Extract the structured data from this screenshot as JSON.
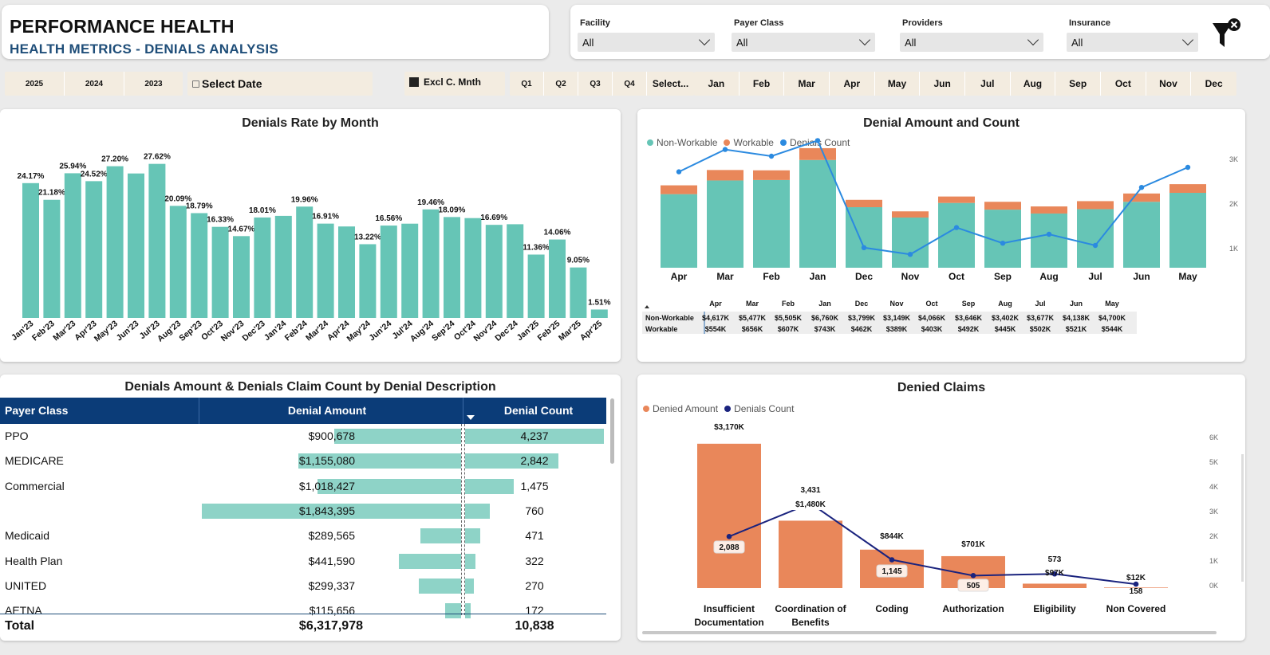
{
  "header": {
    "title": "PERFORMANCE HEALTH",
    "subtitle": "HEALTH METRICS - DENIALS ANALYSIS"
  },
  "filters": [
    {
      "label": "Facility",
      "value": "All"
    },
    {
      "label": "Payer Class",
      "value": "All"
    },
    {
      "label": "Providers",
      "value": "All"
    },
    {
      "label": "Insurance",
      "value": "All"
    }
  ],
  "clear_filters_icon": "funnel-clear-icon",
  "date_bar": {
    "years": [
      "2025",
      "2024",
      "2023"
    ],
    "select_date": "Select Date",
    "excl": "Excl C. Mnth",
    "quarters": [
      "Q1",
      "Q2",
      "Q3",
      "Q4",
      "Select..."
    ],
    "months": [
      "Jan",
      "Feb",
      "Mar",
      "Apr",
      "May",
      "Jun",
      "Jul",
      "Aug",
      "Sep",
      "Oct",
      "Nov",
      "Dec"
    ]
  },
  "rate_chart": {
    "title": "Denials Rate by Month",
    "chart_data": {
      "type": "bar",
      "color": "#66c5b6",
      "categories": [
        "Jan'23",
        "Feb'23",
        "Mar'23",
        "Apr'23",
        "May'23",
        "Jun'23",
        "Jul'23",
        "Aug'23",
        "Sep'23",
        "Oct'23",
        "Nov'23",
        "Dec'23",
        "Jan'24",
        "Feb'24",
        "Mar'24",
        "Apr'24",
        "May'24",
        "Jun'24",
        "Jul'24",
        "Aug'24",
        "Sep'24",
        "Oct'24",
        "Nov'24",
        "Dec'24",
        "Jan'25",
        "Feb'25",
        "Mar'25",
        "Apr'25"
      ],
      "values": [
        24.17,
        21.18,
        25.94,
        24.52,
        27.2,
        25.9,
        27.62,
        20.09,
        18.79,
        16.33,
        14.67,
        18.01,
        18.3,
        19.96,
        16.91,
        16.4,
        13.22,
        16.56,
        16.9,
        19.46,
        18.09,
        17.9,
        16.69,
        16.8,
        11.36,
        14.06,
        9.05,
        1.51
      ],
      "labels": [
        "24.17%",
        "21.18%",
        "25.94%",
        "24.52%",
        "27.20%",
        "",
        "27.62%",
        "20.09%",
        "18.79%",
        "16.33%",
        "14.67%",
        "18.01%",
        "",
        "19.96%",
        "16.91%",
        "",
        "13.22%",
        "16.56%",
        "",
        "19.46%",
        "18.09%",
        "",
        "16.69%",
        "",
        "11.36%",
        "14.06%",
        "9.05%",
        "1.51%"
      ],
      "ylim": [
        0,
        30
      ]
    }
  },
  "amount_chart": {
    "title": "Denial Amount and Count",
    "legend": [
      {
        "name": "Non-Workable",
        "color": "#66c5b6"
      },
      {
        "name": "Workable",
        "color": "#e9875a"
      },
      {
        "name": "Denials Count",
        "color": "#2b8ae0"
      }
    ],
    "chart_data": {
      "type": "bar",
      "stacked": true,
      "categories": [
        "Apr",
        "Mar",
        "Feb",
        "Jan",
        "Dec",
        "Nov",
        "Oct",
        "Sep",
        "Aug",
        "Jul",
        "Jun",
        "May"
      ],
      "series": [
        {
          "name": "Non-Workable",
          "values": [
            4617,
            5477,
            5505,
            6760,
            3799,
            3149,
            4066,
            3646,
            3402,
            3677,
            4138,
            4700
          ]
        },
        {
          "name": "Workable",
          "values": [
            554,
            656,
            607,
            743,
            462,
            389,
            403,
            492,
            445,
            502,
            521,
            544
          ]
        },
        {
          "name": "Denials Count",
          "values": [
            2.7,
            3.2,
            3.05,
            3.4,
            1.0,
            0.85,
            1.45,
            1.1,
            1.3,
            1.05,
            2.35,
            2.8
          ]
        }
      ],
      "y2_ticks": [
        "1K",
        "2K",
        "3K"
      ],
      "ylim": [
        0,
        8000
      ]
    },
    "table": {
      "columns": [
        "Apr",
        "Mar",
        "Feb",
        "Jan",
        "Dec",
        "Nov",
        "Oct",
        "Sep",
        "Aug",
        "Jul",
        "Jun",
        "May"
      ],
      "rows": [
        {
          "name": "Non-Workable",
          "values": [
            "$4,617K",
            "$5,477K",
            "$5,505K",
            "$6,760K",
            "$3,799K",
            "$3,149K",
            "$4,066K",
            "$3,646K",
            "$3,402K",
            "$3,677K",
            "$4,138K",
            "$4,700K"
          ]
        },
        {
          "name": "Workable",
          "values": [
            "$554K",
            "$656K",
            "$607K",
            "$743K",
            "$462K",
            "$389K",
            "$403K",
            "$492K",
            "$445K",
            "$502K",
            "$521K",
            "$544K"
          ]
        }
      ]
    }
  },
  "payer_table": {
    "title": "Denials Amount & Denials Claim Count by Denial Description",
    "headers": {
      "payer": "Payer Class",
      "amount": "Denial Amount",
      "count": "Denial Count"
    },
    "rows": [
      {
        "payer": "PPO",
        "amount": "$900,678",
        "amount_value": 900678,
        "count": "4,237",
        "count_value": 4237
      },
      {
        "payer": "MEDICARE",
        "amount": "$1,155,080",
        "amount_value": 1155080,
        "count": "2,842",
        "count_value": 2842
      },
      {
        "payer": "Commercial",
        "amount": "$1,018,427",
        "amount_value": 1018427,
        "count": "1,475",
        "count_value": 1475
      },
      {
        "payer": "",
        "amount": "$1,843,395",
        "amount_value": 1843395,
        "count": "760",
        "count_value": 760
      },
      {
        "payer": "Medicaid",
        "amount": "$289,565",
        "amount_value": 289565,
        "count": "471",
        "count_value": 471
      },
      {
        "payer": "Health Plan",
        "amount": "$441,590",
        "amount_value": 441590,
        "count": "322",
        "count_value": 322
      },
      {
        "payer": "UNITED",
        "amount": "$299,337",
        "amount_value": 299337,
        "count": "270",
        "count_value": 270
      },
      {
        "payer": "AETNA",
        "amount": "$115,656",
        "amount_value": 115656,
        "count": "172",
        "count_value": 172
      }
    ],
    "total": {
      "label": "Total",
      "amount": "$6,317,978",
      "count": "10,838"
    }
  },
  "denied_chart": {
    "title": "Denied Claims",
    "legend": [
      {
        "name": "Denied Amount",
        "color": "#e9875a"
      },
      {
        "name": "Denials Count",
        "color": "#1a237e"
      }
    ],
    "chart_data": {
      "type": "bar",
      "categories": [
        [
          "Insufficient",
          "Documentation"
        ],
        [
          "Coordination of",
          "Benefits"
        ],
        [
          "Coding"
        ],
        [
          "Authorization"
        ],
        [
          "Eligibility"
        ],
        [
          "Non Covered"
        ]
      ],
      "series": [
        {
          "name": "Denied Amount",
          "values": [
            3170,
            1480,
            844,
            701,
            97,
            12
          ],
          "labels": [
            "$3,170K",
            "$1,480K",
            "$844K",
            "$701K",
            "$97K",
            "$12K"
          ]
        },
        {
          "name": "Denials Count",
          "values": [
            2088,
            3431,
            1145,
            505,
            573,
            158
          ],
          "labels": [
            "2,088",
            "3,431",
            "1,145",
            "505",
            "573",
            "158"
          ]
        }
      ],
      "y2_ticks": [
        "0K",
        "1K",
        "2K",
        "3K",
        "4K",
        "5K",
        "6K"
      ],
      "ylim": [
        0,
        3500
      ]
    }
  }
}
